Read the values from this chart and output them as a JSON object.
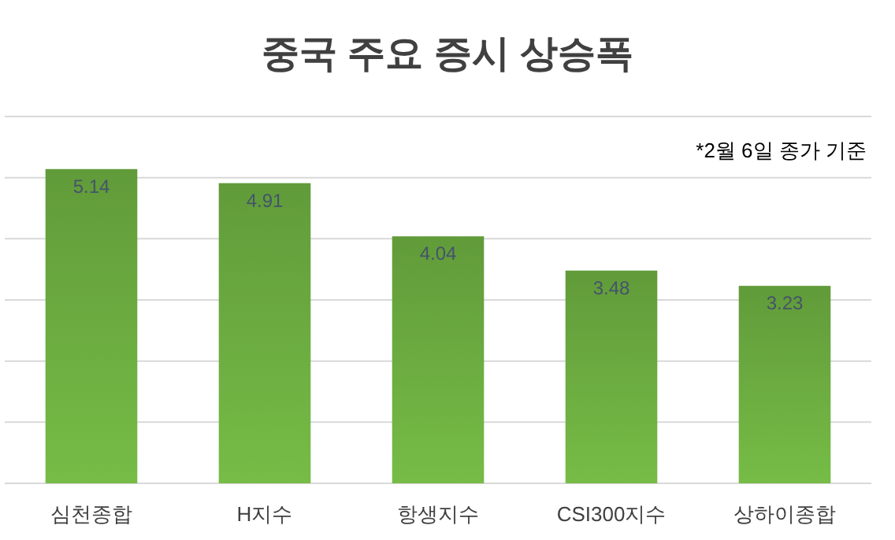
{
  "chart_data": {
    "type": "bar",
    "title": "중국 주요 증시 상승폭",
    "categories": [
      "심천종합",
      "H지수",
      "항생지수",
      "CSI300지수",
      "상하이종합"
    ],
    "values": [
      5.14,
      4.91,
      4.04,
      3.48,
      3.23
    ],
    "color": "#6aa93f",
    "ylim": [
      0,
      6
    ],
    "yticks": [
      {
        "value": 0,
        "label": null
      },
      {
        "value": 1,
        "label": null
      },
      {
        "value": 2,
        "label": null
      },
      {
        "value": 3,
        "label": null
      },
      {
        "value": 4,
        "label": null
      },
      {
        "value": 5,
        "label": null
      },
      {
        "value": 6,
        "label": null
      }
    ],
    "grid": "y",
    "data_labels": true,
    "tick_labels": "x",
    "annotations": [
      "*2월 6일 종가 기준"
    ]
  }
}
